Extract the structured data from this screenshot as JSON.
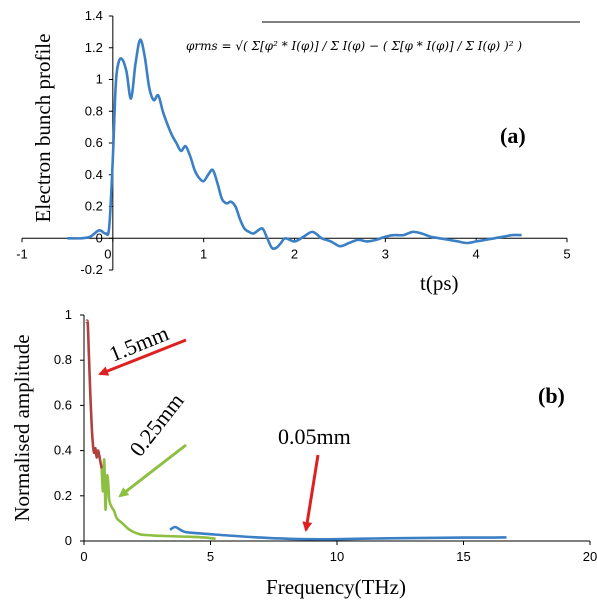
{
  "chart_data": [
    {
      "type": "line",
      "panel_label": "(a)",
      "xlabel": "t(ps)",
      "ylabel": "Electron bunch profile",
      "xlim": [
        -1,
        5
      ],
      "ylim": [
        -0.2,
        1.4
      ],
      "x_ticks": [
        "-1",
        "0",
        "1",
        "2",
        "3",
        "4",
        "5"
      ],
      "y_ticks": [
        "-0.2",
        "0",
        "0.2",
        "0.4",
        "0.6",
        "0.8",
        "1",
        "1.2",
        "1.4"
      ],
      "grid": false,
      "formula_text": "φrms = √( Σ[φ² * I(φ)] / Σ I(φ) − ( Σ[φ * I(φ)] / Σ I(φ) )² )",
      "series": [
        {
          "color": "#3b7fc4",
          "x": [
            -0.5,
            -0.35,
            -0.25,
            -0.15,
            -0.08,
            -0.04,
            0.0,
            0.03,
            0.06,
            0.1,
            0.15,
            0.2,
            0.25,
            0.3,
            0.35,
            0.4,
            0.45,
            0.5,
            0.55,
            0.6,
            0.65,
            0.7,
            0.75,
            0.8,
            0.85,
            0.9,
            0.95,
            1.0,
            1.05,
            1.1,
            1.15,
            1.2,
            1.25,
            1.3,
            1.35,
            1.4,
            1.45,
            1.5,
            1.55,
            1.6,
            1.65,
            1.7,
            1.75,
            1.8,
            1.85,
            1.9,
            2.0,
            2.1,
            2.2,
            2.3,
            2.4,
            2.5,
            2.6,
            2.7,
            2.8,
            2.9,
            3.0,
            3.1,
            3.2,
            3.3,
            3.4,
            3.5,
            3.6,
            3.7,
            3.8,
            3.9,
            4.0,
            4.1,
            4.2,
            4.3,
            4.4,
            4.5
          ],
          "y": [
            0.0,
            0.0,
            0.01,
            0.05,
            0.03,
            0.07,
            0.5,
            0.95,
            1.1,
            1.13,
            1.05,
            0.88,
            1.1,
            1.25,
            1.15,
            0.95,
            0.87,
            0.9,
            0.8,
            0.72,
            0.65,
            0.6,
            0.55,
            0.58,
            0.52,
            0.43,
            0.38,
            0.36,
            0.4,
            0.43,
            0.35,
            0.25,
            0.22,
            0.23,
            0.2,
            0.12,
            0.06,
            0.04,
            0.03,
            0.05,
            0.06,
            0.0,
            -0.06,
            -0.06,
            -0.03,
            0.0,
            -0.02,
            0.01,
            0.04,
            0.0,
            -0.02,
            -0.05,
            -0.03,
            -0.01,
            -0.02,
            -0.01,
            0.01,
            0.02,
            0.02,
            0.04,
            0.03,
            0.01,
            0.0,
            -0.01,
            -0.02,
            -0.03,
            -0.02,
            -0.01,
            0.0,
            0.01,
            0.02,
            0.02
          ]
        }
      ]
    },
    {
      "type": "line",
      "panel_label": "(b)",
      "xlabel": "Frequency(THz)",
      "ylabel": "Normalised amplitude",
      "xlim": [
        0,
        20
      ],
      "ylim": [
        0,
        1
      ],
      "x_ticks": [
        "0",
        "5",
        "10",
        "15",
        "20"
      ],
      "y_ticks": [
        "0",
        "0.2",
        "0.4",
        "0.6",
        "0.8",
        "1"
      ],
      "grid": false,
      "series": [
        {
          "color": "#b0413e",
          "label": "1.5mm",
          "x": [
            0.1,
            0.15,
            0.2,
            0.25,
            0.3,
            0.35,
            0.4,
            0.45,
            0.5,
            0.55,
            0.6,
            0.65,
            0.7
          ],
          "y": [
            0.97,
            0.96,
            0.8,
            0.65,
            0.52,
            0.43,
            0.39,
            0.41,
            0.37,
            0.4,
            0.38,
            0.35,
            0.32
          ]
        },
        {
          "color": "#8dbf42",
          "label": "0.25mm",
          "x": [
            0.7,
            0.75,
            0.8,
            0.85,
            0.9,
            0.95,
            1.0,
            1.1,
            1.2,
            1.3,
            1.5,
            1.8,
            2.2,
            2.7,
            3.2,
            3.8,
            4.3,
            4.8,
            5.2
          ],
          "y": [
            0.32,
            0.22,
            0.36,
            0.14,
            0.28,
            0.27,
            0.18,
            0.15,
            0.13,
            0.1,
            0.08,
            0.05,
            0.03,
            0.025,
            0.022,
            0.02,
            0.018,
            0.015,
            0.01
          ]
        },
        {
          "color": "#3b7fc4",
          "label": "0.05mm",
          "x": [
            3.4,
            3.6,
            3.8,
            4.0,
            4.4,
            5.0,
            6.0,
            7.0,
            8.0,
            9.0,
            10.0,
            11.0,
            12.0,
            13.0,
            14.0,
            15.0,
            16.0,
            16.7
          ],
          "y": [
            0.05,
            0.062,
            0.05,
            0.04,
            0.035,
            0.03,
            0.022,
            0.015,
            0.01,
            0.008,
            0.008,
            0.01,
            0.012,
            0.013,
            0.014,
            0.015,
            0.015,
            0.016
          ]
        }
      ],
      "annotations": [
        {
          "text": "1.5mm",
          "color": "#e02020"
        },
        {
          "text": "0.25mm",
          "color": "#8dbf42"
        },
        {
          "text": "0.05mm",
          "color": "#e02020"
        }
      ]
    }
  ]
}
